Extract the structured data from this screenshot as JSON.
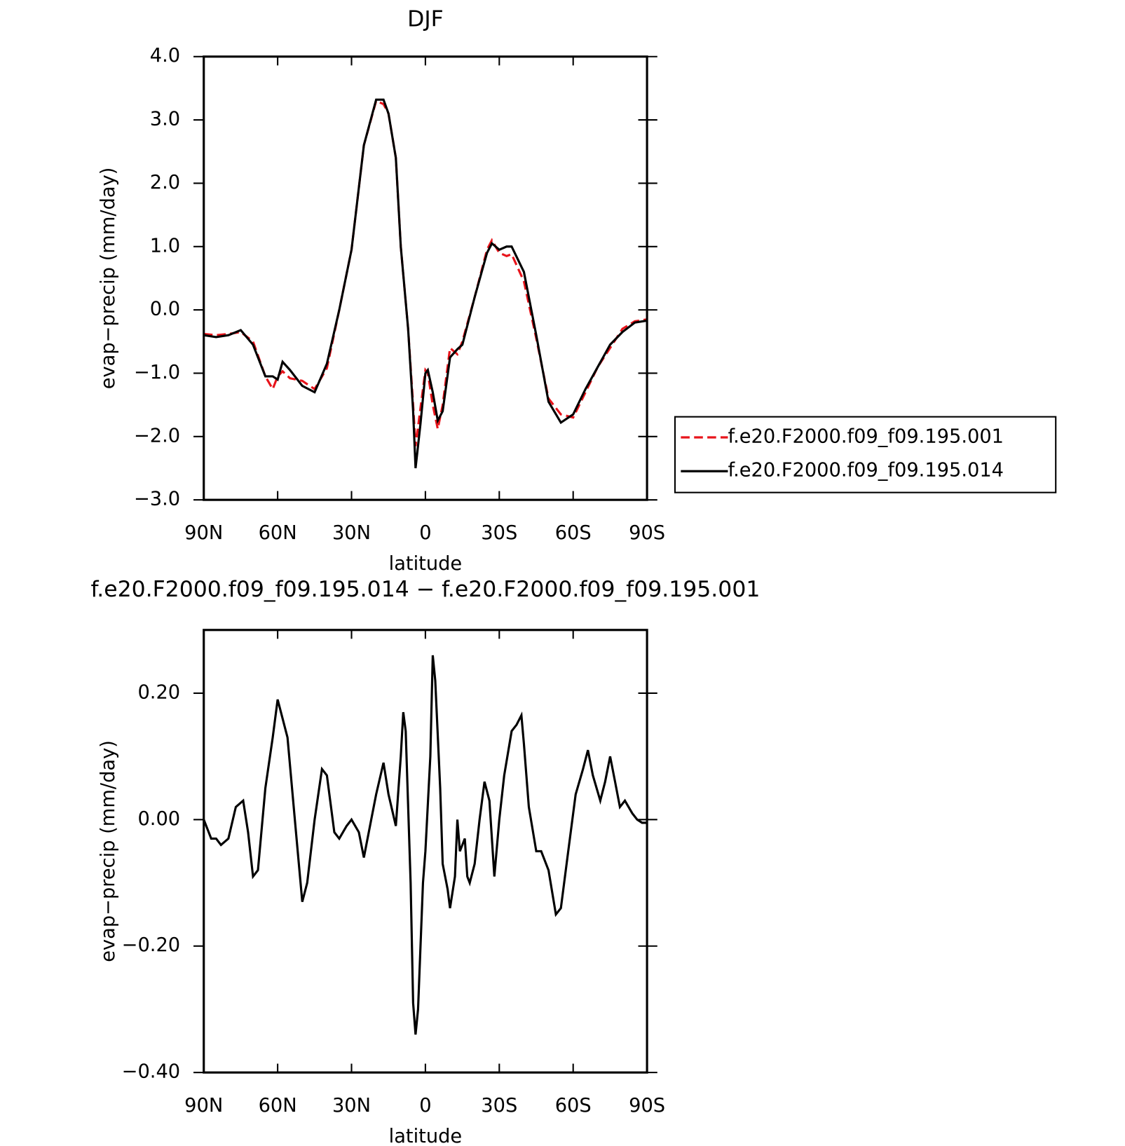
{
  "chart_data": [
    {
      "type": "line",
      "title": "DJF",
      "xlabel": "latitude",
      "ylabel": "evap−precip (mm/day)",
      "x": [
        90,
        85,
        80,
        75,
        70,
        65,
        62,
        60,
        58,
        55,
        50,
        45,
        40,
        35,
        30,
        25,
        20,
        17,
        15,
        12,
        10,
        7,
        5,
        4,
        2,
        0,
        -1,
        -3,
        -5,
        -7,
        -10,
        -13,
        -15,
        -20,
        -25,
        -27,
        -30,
        -33,
        -35,
        -40,
        -45,
        -50,
        -55,
        -60,
        -65,
        -70,
        -75,
        -80,
        -85,
        -90
      ],
      "series": [
        {
          "name": "f.e20.F2000.f09_f09.195.001",
          "color": "#e8141b",
          "linestyle": "dashed",
          "values": [
            -0.38,
            -0.4,
            -0.38,
            -0.35,
            -0.5,
            -1.05,
            -1.25,
            -1.05,
            -0.97,
            -1.08,
            -1.12,
            -1.25,
            -0.92,
            0.0,
            0.95,
            2.6,
            3.3,
            3.25,
            3.1,
            2.4,
            1.0,
            -0.3,
            -1.5,
            -2.15,
            -1.55,
            -0.95,
            -1.0,
            -1.5,
            -1.88,
            -1.5,
            -0.6,
            -0.7,
            -0.5,
            0.2,
            0.95,
            1.1,
            0.9,
            0.85,
            0.88,
            0.45,
            -0.45,
            -1.4,
            -1.65,
            -1.7,
            -1.3,
            -0.9,
            -0.6,
            -0.3,
            -0.18,
            -0.15
          ]
        },
        {
          "name": "f.e20.F2000.f09_f09.195.014",
          "color": "#000000",
          "linestyle": "solid",
          "values": [
            -0.4,
            -0.43,
            -0.4,
            -0.32,
            -0.55,
            -1.05,
            -1.05,
            -1.1,
            -0.82,
            -0.95,
            -1.2,
            -1.3,
            -0.85,
            0.0,
            0.95,
            2.6,
            3.32,
            3.32,
            3.1,
            2.4,
            1.0,
            -0.3,
            -1.6,
            -2.5,
            -1.8,
            -1.0,
            -0.95,
            -1.3,
            -1.75,
            -1.6,
            -0.75,
            -0.62,
            -0.55,
            0.2,
            0.9,
            1.05,
            0.95,
            1.0,
            1.0,
            0.6,
            -0.4,
            -1.45,
            -1.78,
            -1.65,
            -1.25,
            -0.9,
            -0.55,
            -0.35,
            -0.2,
            -0.17
          ]
        }
      ],
      "xlim": [
        90,
        -90
      ],
      "xticks": [
        {
          "value": 90,
          "label": "90N"
        },
        {
          "value": 60,
          "label": "60N"
        },
        {
          "value": 30,
          "label": "30N"
        },
        0,
        {
          "value": -30,
          "label": "30S"
        },
        {
          "value": -60,
          "label": "60S"
        },
        {
          "value": -90,
          "label": "90S"
        }
      ],
      "ylim": [
        -3,
        4
      ],
      "yticks": [
        {
          "value": -3,
          "label": "−3.0"
        },
        {
          "value": -2,
          "label": "−2.0"
        },
        {
          "value": -1,
          "label": "−1.0"
        },
        {
          "value": 0,
          "label": "0.0"
        },
        {
          "value": 1,
          "label": "1.0"
        },
        {
          "value": 2,
          "label": "2.0"
        },
        {
          "value": 3,
          "label": "3.0"
        },
        {
          "value": 4,
          "label": "4.0"
        }
      ],
      "legend": "outside-right"
    },
    {
      "type": "line",
      "title": "f.e20.F2000.f09_f09.195.014 − f.e20.F2000.f09_f09.195.001",
      "xlabel": "latitude",
      "ylabel": "evap−precip (mm/day)",
      "x": [
        90,
        87,
        85,
        83,
        80,
        77,
        74,
        72,
        70,
        68,
        65,
        62,
        60,
        58,
        56,
        53,
        50,
        48,
        45,
        42,
        40,
        37,
        35,
        32,
        30,
        27,
        25,
        22,
        20,
        17,
        15,
        12,
        10,
        9,
        8,
        6,
        5,
        4,
        3,
        1,
        0,
        -2,
        -3,
        -4,
        -6,
        -7,
        -9,
        -10,
        -12,
        -13,
        -14,
        -16,
        -17,
        -18,
        -20,
        -22,
        -24,
        -26,
        -28,
        -30,
        -32,
        -35,
        -37,
        -39,
        -40,
        -42,
        -45,
        -47,
        -50,
        -53,
        -55,
        -58,
        -61,
        -64,
        -66,
        -68,
        -71,
        -73,
        -75,
        -77,
        -79,
        -81,
        -84,
        -86,
        -88,
        -90
      ],
      "color": "#000000",
      "values": [
        0.0,
        -0.03,
        -0.03,
        -0.04,
        -0.03,
        0.02,
        0.03,
        -0.02,
        -0.09,
        -0.08,
        0.05,
        0.13,
        0.19,
        0.16,
        0.13,
        0.0,
        -0.13,
        -0.1,
        0.0,
        0.08,
        0.07,
        -0.02,
        -0.03,
        -0.01,
        0.0,
        -0.02,
        -0.06,
        0.0,
        0.04,
        0.09,
        0.04,
        -0.01,
        0.1,
        0.17,
        0.14,
        -0.1,
        -0.29,
        -0.34,
        -0.3,
        -0.1,
        -0.05,
        0.1,
        0.26,
        0.22,
        0.05,
        -0.07,
        -0.11,
        -0.14,
        -0.09,
        0.0,
        -0.05,
        -0.03,
        -0.09,
        -0.1,
        -0.07,
        0.0,
        0.06,
        0.03,
        -0.09,
        0.0,
        0.07,
        0.14,
        0.15,
        0.165,
        0.12,
        0.02,
        -0.05,
        -0.05,
        -0.08,
        -0.15,
        -0.14,
        -0.05,
        0.04,
        0.08,
        0.11,
        0.07,
        0.03,
        0.06,
        0.1,
        0.06,
        0.02,
        0.03,
        0.01,
        0.0,
        -0.005,
        -0.005
      ],
      "xlim": [
        90,
        -90
      ],
      "xticks": [
        {
          "value": 90,
          "label": "90N"
        },
        {
          "value": 60,
          "label": "60N"
        },
        {
          "value": 30,
          "label": "30N"
        },
        0,
        {
          "value": -30,
          "label": "30S"
        },
        {
          "value": -60,
          "label": "60S"
        },
        {
          "value": -90,
          "label": "90S"
        }
      ],
      "ylim": [
        -0.4,
        0.3
      ],
      "yticks": [
        {
          "value": -0.4,
          "label": "−0.40"
        },
        {
          "value": -0.2,
          "label": "−0.20"
        },
        {
          "value": 0,
          "label": "0.00"
        },
        {
          "value": 0.2,
          "label": "0.20"
        }
      ]
    }
  ]
}
